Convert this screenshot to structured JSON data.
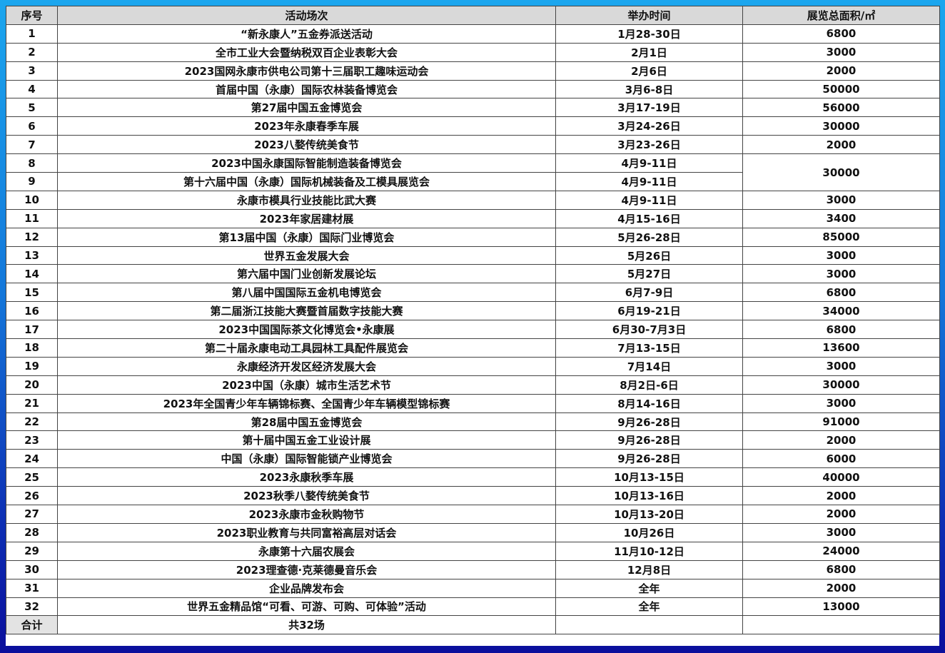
{
  "colors": {
    "header_bg": "#d9d9d9",
    "border": "#444444",
    "frame_top": "#1ba6ee",
    "frame_bottom": "#0a0e9c"
  },
  "headers": {
    "no": "序号",
    "event": "活动场次",
    "date": "举办时间",
    "area": "展览总面积/㎡"
  },
  "rows": [
    {
      "no": "1",
      "event": "“新永康人”五金券派送活动",
      "date": "1月28-30日",
      "area": "6800"
    },
    {
      "no": "2",
      "event": "全市工业大会暨纳税双百企业表彰大会",
      "date": "2月1日",
      "area": "3000"
    },
    {
      "no": "3",
      "event": "2023国网永康市供电公司第十三届职工趣味运动会",
      "date": "2月6日",
      "area": "2000"
    },
    {
      "no": "4",
      "event": "首届中国（永康）国际农林装备博览会",
      "date": "3月6-8日",
      "area": "50000"
    },
    {
      "no": "5",
      "event": "第27届中国五金博览会",
      "date": "3月17-19日",
      "area": "56000"
    },
    {
      "no": "6",
      "event": "2023年永康春季车展",
      "date": "3月24-26日",
      "area": "30000"
    },
    {
      "no": "7",
      "event": "2023八婺传统美食节",
      "date": "3月23-26日",
      "area": "2000"
    },
    {
      "no": "8",
      "event": "2023中国永康国际智能制造装备博览会",
      "date": "4月9-11日",
      "area": "30000"
    },
    {
      "no": "9",
      "event": "第十六届中国（永康）国际机械装备及工模具展览会",
      "date": "4月9-11日",
      "area": null
    },
    {
      "no": "10",
      "event": "永康市模具行业技能比武大赛",
      "date": "4月9-11日",
      "area": "3000"
    },
    {
      "no": "11",
      "event": "2023年家居建材展",
      "date": "4月15-16日",
      "area": "3400"
    },
    {
      "no": "12",
      "event": "第13届中国（永康）国际门业博览会",
      "date": "5月26-28日",
      "area": "85000"
    },
    {
      "no": "13",
      "event": "世界五金发展大会",
      "date": "5月26日",
      "area": "3000"
    },
    {
      "no": "14",
      "event": "第六届中国门业创新发展论坛",
      "date": "5月27日",
      "area": "3000"
    },
    {
      "no": "15",
      "event": "第八届中国国际五金机电博览会",
      "date": "6月7-9日",
      "area": "6800"
    },
    {
      "no": "16",
      "event": "第二届浙江技能大赛暨首届数字技能大赛",
      "date": "6月19-21日",
      "area": "34000"
    },
    {
      "no": "17",
      "event": "2023中国国际茶文化博览会•永康展",
      "date": "6月30-7月3日",
      "area": "6800"
    },
    {
      "no": "18",
      "event": "第二十届永康电动工具园林工具配件展览会",
      "date": "7月13-15日",
      "area": "13600"
    },
    {
      "no": "19",
      "event": "永康经济开发区经济发展大会",
      "date": "7月14日",
      "area": "3000"
    },
    {
      "no": "20",
      "event": "2023中国（永康）城市生活艺术节",
      "date": "8月2日-6日",
      "area": "30000"
    },
    {
      "no": "21",
      "event": "2023年全国青少年车辆锦标赛、全国青少年车辆模型锦标赛",
      "date": "8月14-16日",
      "area": "3000"
    },
    {
      "no": "22",
      "event": "第28届中国五金博览会",
      "date": "9月26-28日",
      "area": "91000"
    },
    {
      "no": "23",
      "event": "第十届中国五金工业设计展",
      "date": "9月26-28日",
      "area": "2000"
    },
    {
      "no": "24",
      "event": "中国（永康）国际智能锁产业博览会",
      "date": "9月26-28日",
      "area": "6000"
    },
    {
      "no": "25",
      "event": "2023永康秋季车展",
      "date": "10月13-15日",
      "area": "40000"
    },
    {
      "no": "26",
      "event": "2023秋季八婺传统美食节",
      "date": "10月13-16日",
      "area": "2000"
    },
    {
      "no": "27",
      "event": "2023永康市金秋购物节",
      "date": "10月13-20日",
      "area": "2000"
    },
    {
      "no": "28",
      "event": "2023职业教育与共同富裕高层对话会",
      "date": "10月26日",
      "area": "3000"
    },
    {
      "no": "29",
      "event": "永康第十六届农展会",
      "date": "11月10-12日",
      "area": "24000"
    },
    {
      "no": "30",
      "event": "2023理查德·克莱德曼音乐会",
      "date": "12月8日",
      "area": "6800"
    },
    {
      "no": "31",
      "event": "企业品牌发布会",
      "date": "全年",
      "area": "2000"
    },
    {
      "no": "32",
      "event": "世界五金精品馆“可看、可游、可购、可体验”活动",
      "date": "全年",
      "area": "13000"
    }
  ],
  "total": {
    "label": "合计",
    "event": "共32场",
    "date": "",
    "area": ""
  }
}
